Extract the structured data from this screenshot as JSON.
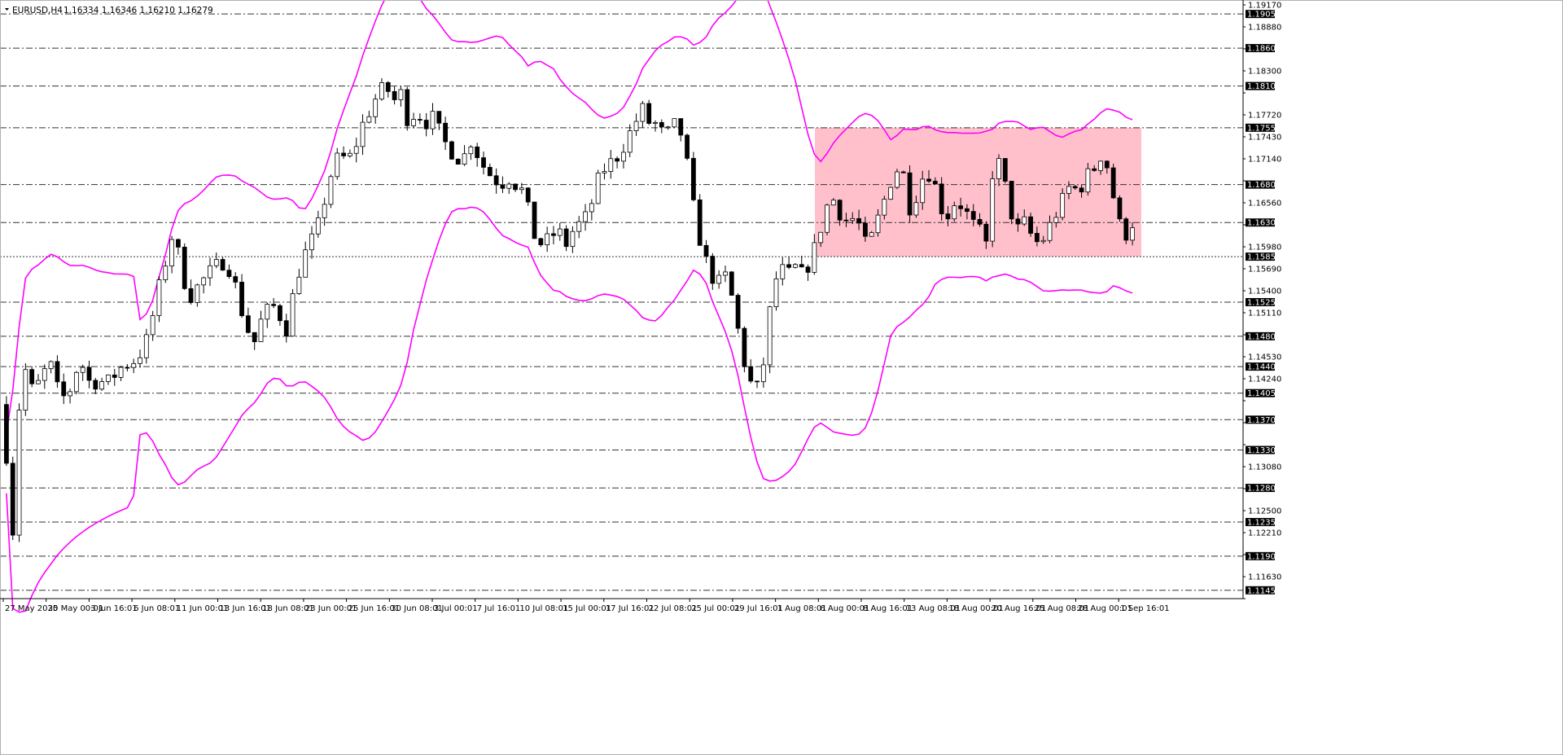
{
  "header": {
    "symbol": "EURUSD,H4",
    "ohlc": "1.16334 1.16346 1.16210 1.16279"
  },
  "colors": {
    "background": "#ffffff",
    "candles": "#000000",
    "bands": "#ff00ff",
    "range_box": "#ffc0cb",
    "levels": "#333333",
    "level_label_bg": "#000000"
  },
  "chart_data": {
    "type": "candlestick",
    "title": "",
    "xlabel": "",
    "ylabel": "",
    "ylim": [
      1.1134,
      1.1917
    ],
    "grid": false,
    "price_ticks": [
      "1.19170",
      "1.18880",
      "1.18590",
      "1.18300",
      "1.18010",
      "1.17720",
      "1.17430",
      "1.17140",
      "1.16850",
      "1.16560",
      "1.16270",
      "1.15980",
      "1.15690",
      "1.15400",
      "1.15110",
      "1.14820",
      "1.14530",
      "1.14240",
      "1.13950",
      "1.13660",
      "1.13370",
      "1.13080",
      "1.12790",
      "1.12500",
      "1.12210",
      "1.11920",
      "1.11630",
      "1.11340"
    ],
    "time_ticks": [
      "27 May 2025",
      "30 May 00:01",
      "3 Jun 16:01",
      "6 Jun 08:01",
      "11 Jun 00:01",
      "13 Jun 16:01",
      "18 Jun 08:01",
      "23 Jun 00:01",
      "25 Jun 16:01",
      "30 Jun 08:01",
      "3 Jul 00:01",
      "7 Jul 16:01",
      "10 Jul 08:01",
      "15 Jul 00:01",
      "17 Jul 16:01",
      "22 Jul 08:01",
      "25 Jul 00:01",
      "29 Jul 16:01",
      "1 Aug 08:01",
      "6 Aug 00:01",
      "8 Aug 16:01",
      "13 Aug 08:01",
      "18 Aug 00:01",
      "20 Aug 16:01",
      "25 Aug 08:01",
      "28 Aug 00:01",
      "1 Sep 16:01"
    ],
    "levels": [
      "1.19050",
      "1.18600",
      "1.18100",
      "1.17550",
      "1.16800",
      "1.16300",
      "1.15850",
      "1.15250",
      "1.14800",
      "1.14400",
      "1.14050",
      "1.13700",
      "1.13300",
      "1.12800",
      "1.12350",
      "1.11900",
      "1.11450"
    ],
    "level_styles": [
      "dashdot",
      "dashdot",
      "dashdot",
      "dashdot",
      "dashdot",
      "dashdot",
      "dotted",
      "dashdot",
      "dashdot",
      "dashdot",
      "dashdot",
      "dashdot",
      "dashdot",
      "dashdot",
      "dashdot",
      "dashdot",
      "dashdot"
    ],
    "range_box": {
      "top": 1.1755,
      "bottom": 1.1585,
      "start": "6 Aug 00:01",
      "end": "3 Sep 00:01"
    },
    "price_path": [
      [
        0,
        1.139
      ],
      [
        0.02,
        1.131
      ],
      [
        0.04,
        1.129
      ],
      [
        0.052,
        1.121
      ],
      [
        0.07,
        1.136
      ],
      [
        0.09,
        1.14
      ],
      [
        0.12,
        1.144
      ],
      [
        0.16,
        1.14
      ],
      [
        0.2,
        1.143
      ],
      [
        0.25,
        1.144
      ],
      [
        0.3,
        1.1395
      ],
      [
        0.35,
        1.141
      ],
      [
        0.4,
        1.145
      ],
      [
        0.45,
        1.142
      ],
      [
        0.55,
        1.142
      ],
      [
        0.62,
        1.144
      ],
      [
        0.7,
        1.145
      ],
      [
        0.76,
        1.148
      ],
      [
        0.8,
        1.153
      ],
      [
        0.85,
        1.158
      ],
      [
        0.89,
        1.162
      ],
      [
        0.93,
        1.157
      ],
      [
        0.97,
        1.153
      ],
      [
        1.03,
        1.155
      ],
      [
        1.1,
        1.157
      ],
      [
        1.16,
        1.158
      ],
      [
        1.2,
        1.156
      ],
      [
        1.26,
        1.15
      ],
      [
        1.31,
        1.147
      ],
      [
        1.36,
        1.151
      ],
      [
        1.42,
        1.152
      ],
      [
        1.48,
        1.149
      ],
      [
        1.52,
        1.154
      ],
      [
        1.56,
        1.158
      ],
      [
        1.6,
        1.16
      ],
      [
        1.64,
        1.162
      ],
      [
        1.68,
        1.166
      ],
      [
        1.72,
        1.17
      ],
      [
        1.76,
        1.172
      ],
      [
        1.8,
        1.171
      ],
      [
        1.84,
        1.173
      ],
      [
        1.88,
        1.176
      ],
      [
        1.92,
        1.178
      ],
      [
        1.96,
        1.18
      ],
      [
        2.0,
        1.181
      ],
      [
        2.04,
        1.179
      ],
      [
        2.08,
        1.18
      ],
      [
        2.12,
        1.176
      ],
      [
        2.16,
        1.178
      ],
      [
        2.2,
        1.176
      ],
      [
        2.24,
        1.177
      ],
      [
        2.28,
        1.175
      ],
      [
        2.32,
        1.173
      ],
      [
        2.36,
        1.172
      ],
      [
        2.4,
        1.171
      ],
      [
        2.44,
        1.174
      ],
      [
        2.48,
        1.172
      ],
      [
        2.52,
        1.17
      ],
      [
        2.56,
        1.169
      ],
      [
        2.6,
        1.168
      ],
      [
        2.64,
        1.169
      ],
      [
        2.68,
        1.168
      ],
      [
        2.72,
        1.167
      ],
      [
        2.78,
        1.161
      ],
      [
        2.82,
        1.16
      ],
      [
        2.86,
        1.161
      ],
      [
        2.9,
        1.162
      ],
      [
        2.94,
        1.16
      ],
      [
        2.98,
        1.162
      ],
      [
        3.02,
        1.163
      ],
      [
        3.06,
        1.164
      ],
      [
        3.1,
        1.168
      ],
      [
        3.14,
        1.17
      ],
      [
        3.18,
        1.171
      ],
      [
        3.22,
        1.172
      ],
      [
        3.26,
        1.174
      ],
      [
        3.3,
        1.176
      ],
      [
        3.34,
        1.178
      ],
      [
        3.38,
        1.176
      ],
      [
        3.42,
        1.176
      ],
      [
        3.46,
        1.174
      ],
      [
        3.5,
        1.176
      ],
      [
        3.54,
        1.175
      ],
      [
        3.58,
        1.17
      ],
      [
        3.62,
        1.163
      ],
      [
        3.66,
        1.159
      ],
      [
        3.7,
        1.156
      ],
      [
        3.74,
        1.155
      ],
      [
        3.78,
        1.156
      ],
      [
        3.82,
        1.152
      ],
      [
        3.86,
        1.146
      ],
      [
        3.9,
        1.142
      ],
      [
        3.94,
        1.141
      ],
      [
        3.98,
        1.145
      ],
      [
        4.02,
        1.154
      ],
      [
        4.06,
        1.157
      ],
      [
        4.1,
        1.156
      ],
      [
        4.14,
        1.157
      ],
      [
        4.18,
        1.156
      ],
      [
        4.22,
        1.158
      ],
      [
        4.26,
        1.161
      ],
      [
        4.3,
        1.165
      ],
      [
        4.34,
        1.166
      ],
      [
        4.38,
        1.164
      ],
      [
        4.42,
        1.163
      ],
      [
        4.46,
        1.164
      ],
      [
        4.5,
        1.16
      ],
      [
        4.54,
        1.161
      ],
      [
        4.58,
        1.164
      ],
      [
        4.62,
        1.167
      ],
      [
        4.66,
        1.17
      ],
      [
        4.7,
        1.17
      ],
      [
        4.74,
        1.165
      ],
      [
        4.78,
        1.167
      ],
      [
        4.82,
        1.17
      ],
      [
        4.86,
        1.169
      ],
      [
        4.9,
        1.165
      ],
      [
        4.94,
        1.164
      ],
      [
        4.98,
        1.166
      ],
      [
        5.02,
        1.165
      ],
      [
        5.06,
        1.163
      ],
      [
        5.1,
        1.162
      ],
      [
        5.14,
        1.16
      ],
      [
        5.18,
        1.172
      ],
      [
        5.22,
        1.17
      ],
      [
        5.26,
        1.165
      ],
      [
        5.3,
        1.162
      ],
      [
        5.34,
        1.163
      ],
      [
        5.38,
        1.161
      ],
      [
        5.42,
        1.16
      ],
      [
        5.46,
        1.162
      ],
      [
        5.5,
        1.164
      ],
      [
        5.54,
        1.166
      ],
      [
        5.58,
        1.168
      ],
      [
        5.62,
        1.167
      ],
      [
        5.66,
        1.169
      ],
      [
        5.7,
        1.17
      ],
      [
        5.74,
        1.172
      ],
      [
        5.78,
        1.17
      ],
      [
        5.82,
        1.164
      ],
      [
        5.86,
        1.161
      ],
      [
        5.9,
        1.163
      ],
      [
        5.92,
        1.1628
      ]
    ],
    "path_note_units": "weeks from 27 May 2025 00:00 vs EURUSD price"
  }
}
